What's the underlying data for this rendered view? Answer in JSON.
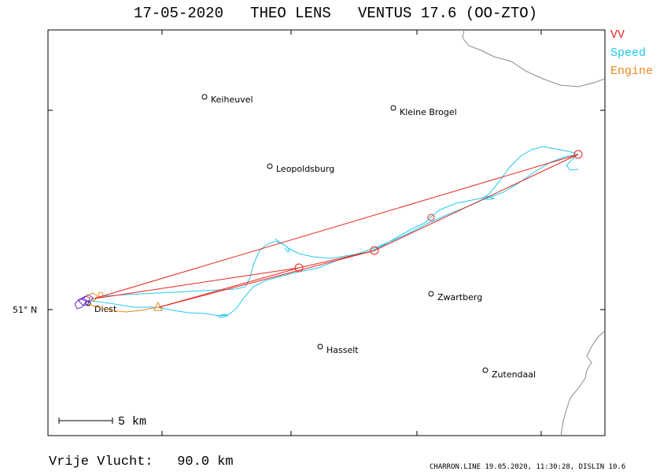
{
  "header": {
    "title": "17-05-2020   THEO LENS   VENTUS 17.6 (OO-ZTO)"
  },
  "legend": {
    "items": [
      {
        "label": "VV",
        "color": "#e8261e"
      },
      {
        "label": "Speed",
        "color": "#22c8ee"
      },
      {
        "label": "Engine",
        "color": "#e88a1e"
      }
    ]
  },
  "map": {
    "latitude_label": "51° N",
    "scale_label": "5 km",
    "places": [
      {
        "name": "Keiheuvel"
      },
      {
        "name": "Kleine Brogel"
      },
      {
        "name": "Leopoldsburg"
      },
      {
        "name": "Zwartberg"
      },
      {
        "name": "Diest"
      },
      {
        "name": "Hasselt"
      },
      {
        "name": "Zutendaal"
      }
    ]
  },
  "footer": {
    "distance_text": "Vrije Vlucht:   90.0 km",
    "credits": "CHARRON.LINE 19.05.2020, 11:30:28, DISLIN 10.6"
  }
}
